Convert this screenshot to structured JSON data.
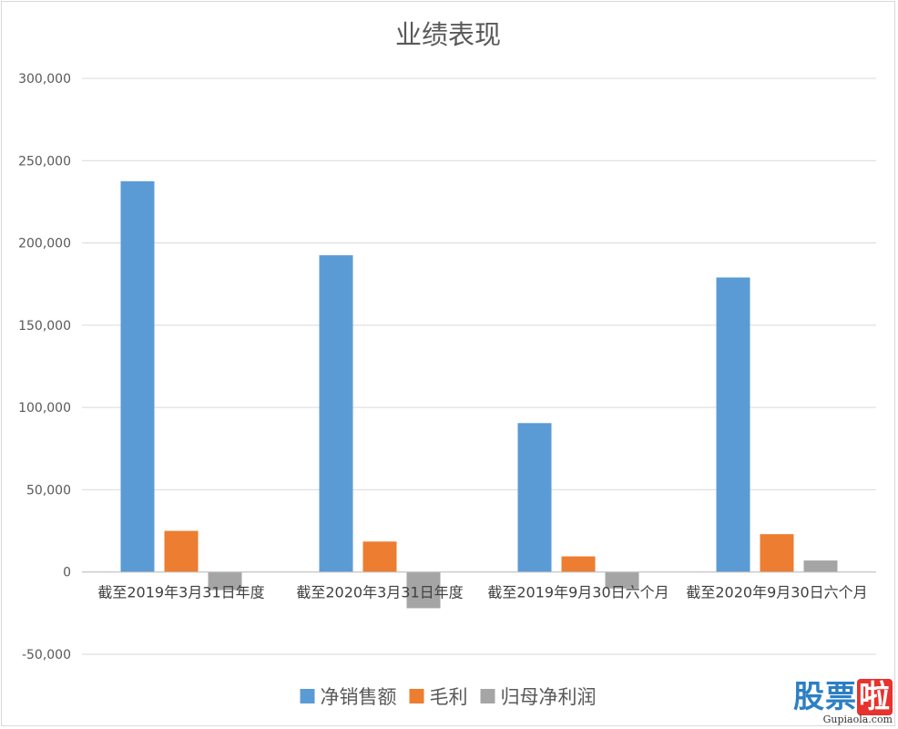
{
  "chart_data": {
    "type": "bar",
    "title": "业绩表现",
    "categories": [
      "截至2019年3月31日年度",
      "截至2020年3月31日年度",
      "截至2019年9月30日六个月",
      "截至2020年9月30日六个月"
    ],
    "series": [
      {
        "name": "净销售额",
        "color": "#5b9bd5",
        "values": [
          237500,
          192500,
          90500,
          179000
        ]
      },
      {
        "name": "毛利",
        "color": "#ed7d31",
        "values": [
          25000,
          18500,
          9500,
          23000
        ]
      },
      {
        "name": "归母净利润",
        "color": "#a5a5a5",
        "values": [
          -11000,
          -22000,
          -10000,
          7000
        ]
      }
    ],
    "ylim": [
      -50000,
      300000
    ],
    "yticks": [
      300000,
      250000,
      200000,
      150000,
      100000,
      50000,
      0,
      -50000
    ],
    "ytick_labels": [
      "300,000",
      "250,000",
      "200,000",
      "150,000",
      "100,000",
      "50,000",
      "0",
      "-50,000"
    ],
    "xlabel": "",
    "ylabel": "",
    "grid": true,
    "legend_position": "bottom"
  },
  "watermark": {
    "logo_part1": "股票",
    "logo_part2": "啦",
    "url": "Gupiaola.com"
  }
}
